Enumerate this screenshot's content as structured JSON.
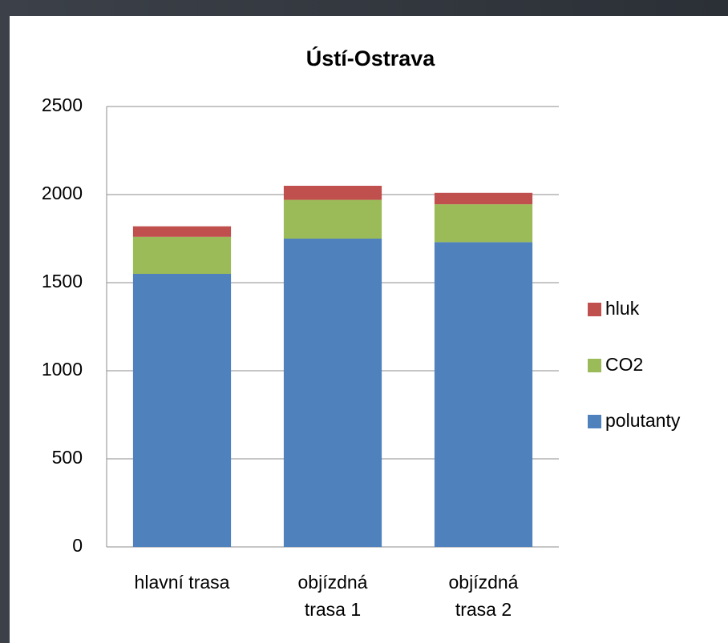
{
  "chart_data": {
    "type": "stacked_bar",
    "title": "Ústí-Ostrava",
    "categories": [
      "hlavní trasa",
      "objízdná\ntrasa 1",
      "objízdná\ntrasa 2"
    ],
    "series": [
      {
        "name": "polutanty",
        "color": "#4f81bd",
        "values": [
          1550,
          1750,
          1730
        ]
      },
      {
        "name": "CO2",
        "color": "#9bbb59",
        "values": [
          210,
          220,
          215
        ]
      },
      {
        "name": "hluk",
        "color": "#c0504d",
        "values": [
          60,
          80,
          65
        ]
      }
    ],
    "ylim": [
      0,
      2500
    ],
    "yticks": [
      0,
      500,
      1000,
      1500,
      2000,
      2500
    ],
    "grid": true,
    "legend": "right"
  }
}
